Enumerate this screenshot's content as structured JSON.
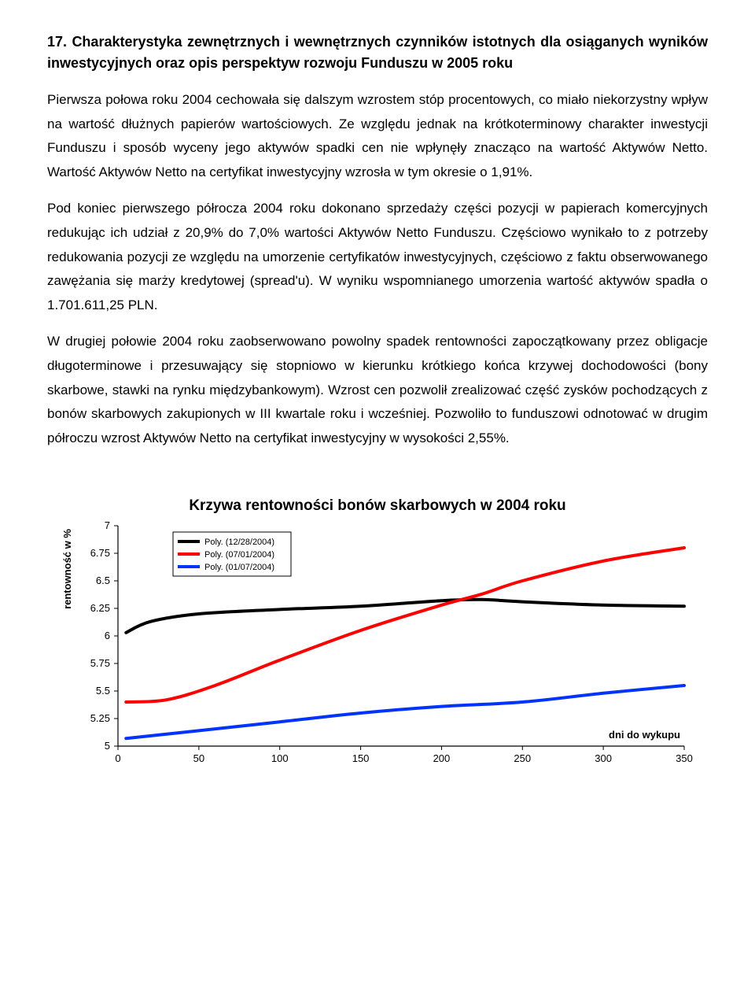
{
  "heading": "17. Charakterystyka zewnętrznych i wewnętrznych czynników istotnych dla osiąganych wyników inwestycyjnych oraz opis perspektyw rozwoju Funduszu w 2005 roku",
  "p1": "Pierwsza połowa roku 2004 cechowała się dalszym wzrostem stóp procentowych, co miało niekorzystny wpływ na wartość dłużnych papierów wartościowych. Ze względu jednak na krótkoterminowy charakter inwestycji Funduszu i sposób wyceny jego aktywów spadki cen nie wpłynęły znacząco na wartość Aktywów Netto. Wartość Aktywów Netto na certyfikat inwestycyjny wzrosła w tym okresie o 1,91%.",
  "p2": "Pod koniec pierwszego półrocza 2004 roku dokonano sprzedaży części pozycji w papierach komercyjnych redukując ich udział z 20,9% do 7,0% wartości Aktywów Netto Funduszu. Częściowo wynikało to z potrzeby redukowania pozycji ze względu na umorzenie certyfikatów inwestycyjnych, częściowo z faktu obserwowanego zawężania się marży kredytowej (spread'u). W wyniku wspomnianego umorzenia wartość aktywów spadła o 1.701.611,25 PLN.",
  "p3": "W drugiej połowie 2004 roku zaobserwowano powolny spadek rentowności zapoczątkowany przez obligacje długoterminowe i przesuwający się stopniowo w kierunku krótkiego końca krzywej dochodowości (bony skarbowe, stawki na rynku międzybankowym). Wzrost cen pozwolił zrealizować część zysków pochodzących z bonów skarbowych zakupionych w III kwartale roku i wcześniej. Pozwoliło to funduszowi odnotować w drugim półroczu wzrost Aktywów Netto na certyfikat inwestycyjny w wysokości 2,55%.",
  "chart": {
    "type": "line",
    "title": "Krzywa rentowności bonów skarbowych w 2004 roku",
    "ylabel": "rentowność w %",
    "xlabel": "dni do wykupu",
    "xlim": [
      0,
      350
    ],
    "ylim": [
      5,
      7
    ],
    "xtick_step": 50,
    "ytick_step": 0.25,
    "background_color": "#ffffff",
    "grid": false,
    "line_width": 4,
    "axis_color": "#000000",
    "tick_fontsize": 13,
    "label_fontsize": 13,
    "title_fontsize": 19,
    "legend": {
      "position": "top-left",
      "border_color": "#000000",
      "bg_color": "#ffffff",
      "fontsize": 11,
      "items": [
        {
          "label": "Poly. (12/28/2004)",
          "color": "#000000"
        },
        {
          "label": "Poly. (07/01/2004)",
          "color": "#ff0000"
        },
        {
          "label": "Poly. (01/07/2004)",
          "color": "#0033ff"
        }
      ]
    },
    "series": [
      {
        "name": "Poly. (12/28/2004)",
        "color": "#000000",
        "points": [
          [
            5,
            6.03
          ],
          [
            20,
            6.13
          ],
          [
            50,
            6.2
          ],
          [
            100,
            6.24
          ],
          [
            150,
            6.27
          ],
          [
            200,
            6.32
          ],
          [
            225,
            6.33
          ],
          [
            250,
            6.31
          ],
          [
            300,
            6.28
          ],
          [
            350,
            6.27
          ]
        ]
      },
      {
        "name": "Poly. (07/01/2004)",
        "color": "#ff0000",
        "points": [
          [
            5,
            5.4
          ],
          [
            30,
            5.42
          ],
          [
            60,
            5.55
          ],
          [
            100,
            5.78
          ],
          [
            150,
            6.05
          ],
          [
            200,
            6.28
          ],
          [
            225,
            6.38
          ],
          [
            250,
            6.5
          ],
          [
            300,
            6.68
          ],
          [
            350,
            6.8
          ]
        ]
      },
      {
        "name": "Poly. (01/07/2004)",
        "color": "#0033ff",
        "points": [
          [
            5,
            5.07
          ],
          [
            50,
            5.14
          ],
          [
            100,
            5.22
          ],
          [
            150,
            5.3
          ],
          [
            200,
            5.36
          ],
          [
            250,
            5.4
          ],
          [
            300,
            5.48
          ],
          [
            350,
            5.55
          ]
        ]
      }
    ]
  }
}
